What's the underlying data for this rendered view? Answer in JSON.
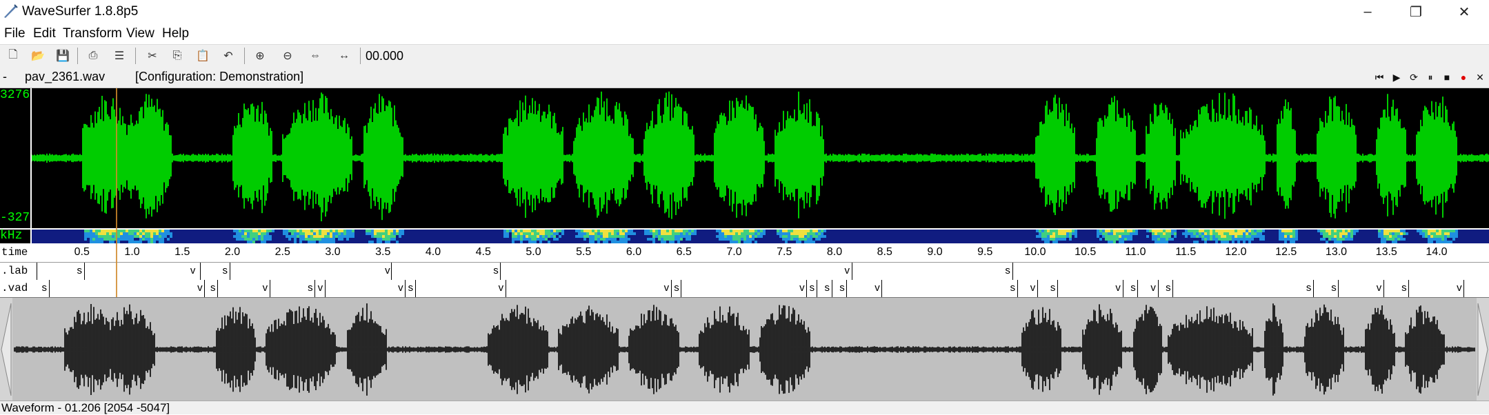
{
  "window": {
    "title": "WaveSurfer 1.8.8p5",
    "minimize_icon": "minimize-icon",
    "maximize_icon": "restore-icon",
    "close_icon": "close-icon"
  },
  "menu": {
    "items": [
      "File",
      "Edit",
      "Transform",
      "View",
      "Help"
    ]
  },
  "toolbar": {
    "buttons": [
      "new-file-icon",
      "open-folder-icon",
      "save-icon",
      "print-icon",
      "print-setup-icon",
      "cut-icon",
      "copy-icon",
      "paste-icon",
      "undo-icon",
      "zoom-in-icon",
      "zoom-out-icon",
      "zoom-fit-icon",
      "zoom-selection-icon"
    ],
    "time_readout": "00.000"
  },
  "filebar": {
    "dash": "-",
    "file_name": "pav_2361.wav",
    "configuration": "[Configuration: Demonstration]",
    "playback_buttons": [
      "skip-to-start-icon",
      "play-icon",
      "play-loop-icon",
      "pause-icon",
      "stop-icon",
      "record-icon",
      "close-pane-icon"
    ]
  },
  "waveform": {
    "max_label": "3276",
    "min_label": "-327",
    "color": "#00ff00",
    "background": "#000000"
  },
  "spectrogram": {
    "axis_label": "kHz"
  },
  "ruler": {
    "label": "time",
    "unit": "s",
    "ticks": [
      "0.5",
      "1.0",
      "1.5",
      "2.0",
      "2.5",
      "3.0",
      "3.5",
      "4.0",
      "4.5",
      "5.0",
      "5.5",
      "6.0",
      "6.5",
      "7.0",
      "7.5",
      "8.0",
      "8.5",
      "9.0",
      "9.5",
      "10.0",
      "10.5",
      "11.0",
      "11.5",
      "12.0",
      "12.5",
      "13.0",
      "13.5",
      "14.0"
    ],
    "tick_values": [
      0.5,
      1.0,
      1.5,
      2.0,
      2.5,
      3.0,
      3.5,
      4.0,
      4.5,
      5.0,
      5.5,
      6.0,
      6.5,
      7.0,
      7.5,
      8.0,
      8.5,
      9.0,
      9.5,
      10.0,
      10.5,
      11.0,
      11.5,
      12.0,
      12.5,
      13.0,
      13.5,
      14.0
    ]
  },
  "tiers": {
    "lab": {
      "name": ".lab",
      "segments": [
        {
          "label": "s",
          "time": 0.45
        },
        {
          "label": "v",
          "time": 1.58
        },
        {
          "label": "s",
          "time": 1.9
        },
        {
          "label": "v",
          "time": 3.52
        },
        {
          "label": "s",
          "time": 4.6
        },
        {
          "label": "v",
          "time": 8.1
        },
        {
          "label": "s",
          "time": 9.7
        }
      ],
      "boundaries": [
        0.05,
        0.52,
        1.68,
        1.97,
        3.58,
        4.67,
        8.17,
        9.77
      ]
    },
    "vad": {
      "name": ".vad",
      "segments": [
        {
          "label": "s",
          "time": 0.1
        },
        {
          "label": "v",
          "time": 1.65
        },
        {
          "label": "s",
          "time": 1.78
        },
        {
          "label": "v",
          "time": 2.3
        },
        {
          "label": "s",
          "time": 2.75
        },
        {
          "label": "v",
          "time": 2.85
        },
        {
          "label": "v",
          "time": 3.65
        },
        {
          "label": "s",
          "time": 3.75
        },
        {
          "label": "v",
          "time": 4.65
        },
        {
          "label": "v",
          "time": 6.3
        },
        {
          "label": "s",
          "time": 6.4
        },
        {
          "label": "v",
          "time": 7.65
        },
        {
          "label": "s",
          "time": 7.75
        },
        {
          "label": "s",
          "time": 7.9
        },
        {
          "label": "s",
          "time": 8.05
        },
        {
          "label": "v",
          "time": 8.4
        },
        {
          "label": "s",
          "time": 9.75
        },
        {
          "label": "v",
          "time": 9.95
        },
        {
          "label": "s",
          "time": 10.15
        },
        {
          "label": "v",
          "time": 10.8
        },
        {
          "label": "s",
          "time": 10.95
        },
        {
          "label": "v",
          "time": 11.15
        },
        {
          "label": "s",
          "time": 11.3
        },
        {
          "label": "s",
          "time": 12.7
        },
        {
          "label": "s",
          "time": 12.95
        },
        {
          "label": "v",
          "time": 13.4
        },
        {
          "label": "s",
          "time": 13.65
        },
        {
          "label": "v",
          "time": 14.2
        }
      ]
    }
  },
  "selection_time": 0.84,
  "duration": 14.5,
  "status": {
    "text": "Waveform - 01.206 [2054 -5047]"
  }
}
